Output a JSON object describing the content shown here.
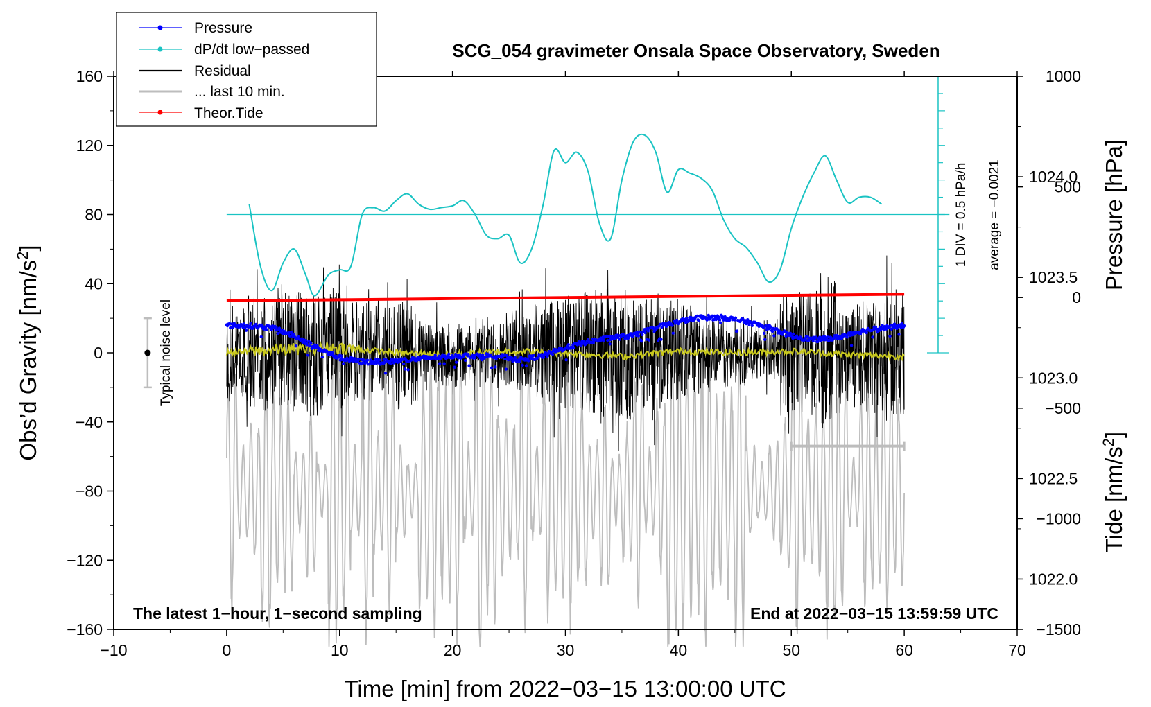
{
  "chart_data": {
    "type": "line",
    "title": "SCG_054 gravimeter Onsala Space Observatory, Sweden",
    "xlabel": "Time [min] from 2022−03−15 13:00:00 UTC",
    "ylabel_left": "Obs’d Gravity [nm/s²]",
    "ylabel_pressure": "Pressure [hPa]",
    "ylabel_tide": "Tide [nm/s²]",
    "xlim": [
      -10,
      70
    ],
    "ylim": [
      -160,
      160
    ],
    "pressure_lim": [
      1021.75,
      1024.5
    ],
    "tide_lim": [
      -1500,
      1000
    ],
    "x_ticks": [
      "−10",
      "0",
      "10",
      "20",
      "30",
      "40",
      "50",
      "60",
      "70"
    ],
    "y_ticks": [
      "160",
      "120",
      "80",
      "40",
      "0",
      "−40",
      "−80",
      "−120",
      "−160"
    ],
    "pressure_ticks": [
      "1024.0",
      "1023.5",
      "1023.0",
      "1022.5",
      "1022.0"
    ],
    "tide_ticks": [
      "1000",
      "500",
      "0",
      "−500",
      "−1000",
      "−1500"
    ],
    "legend": [
      "Pressure",
      "dP/dt low−passed",
      "Residual",
      "... last 10 min.",
      "Theor.Tide"
    ],
    "colors": {
      "pressure": "#0000ff",
      "dpdt": "#1ac3c3",
      "residual": "#000000",
      "last10": "#bdbdbd",
      "tide": "#ff0000",
      "smoothed": "#c8c81e"
    },
    "annotations": {
      "noise_label": "Typical noise level",
      "noise_range": [
        -20,
        20
      ],
      "div_label": "1 DIV = 0.5 hPa/h",
      "avg_label": "average = −0.0021",
      "bottom_left": "The latest 1−hour, 1−second sampling",
      "bottom_right": "End at 2022−03−15 13:59:59 UTC",
      "last10_range": [
        50,
        60
      ]
    },
    "series": [
      {
        "name": "Pressure",
        "unit": "hPa",
        "x": [
          0,
          2,
          4,
          6,
          8,
          10,
          12,
          14,
          16,
          18,
          20,
          22,
          24,
          26,
          28,
          30,
          32,
          34,
          36,
          38,
          40,
          42,
          44,
          46,
          48,
          50,
          52,
          54,
          56,
          58,
          60
        ],
        "values": [
          1023.26,
          1023.26,
          1023.25,
          1023.21,
          1023.15,
          1023.1,
          1023.08,
          1023.08,
          1023.09,
          1023.1,
          1023.11,
          1023.11,
          1023.11,
          1023.09,
          1023.11,
          1023.15,
          1023.18,
          1023.2,
          1023.21,
          1023.25,
          1023.28,
          1023.3,
          1023.3,
          1023.28,
          1023.25,
          1023.21,
          1023.19,
          1023.2,
          1023.23,
          1023.25,
          1023.26
        ]
      },
      {
        "name": "dP/dt low−passed",
        "unit": "nm/s² plot scale",
        "x": [
          2,
          3,
          4,
          5,
          6,
          7,
          7.8,
          9,
          10,
          11,
          12,
          13,
          14,
          15,
          16,
          17,
          18,
          19,
          20,
          21,
          22,
          23,
          24,
          25,
          26,
          27,
          28,
          29,
          30,
          31,
          32,
          33,
          34,
          35,
          36,
          37,
          38,
          39,
          40,
          41,
          42,
          43,
          44,
          45,
          46,
          47,
          48,
          49,
          50,
          51,
          52,
          53,
          54,
          55,
          56,
          57,
          58
        ],
        "values": [
          86,
          50,
          36,
          52,
          60,
          45,
          33,
          45,
          48,
          50,
          80,
          84,
          82,
          88,
          92,
          86,
          83,
          84,
          85,
          88,
          80,
          68,
          66,
          68,
          52,
          60,
          85,
          117,
          110,
          116,
          105,
          75,
          66,
          100,
          122,
          126,
          116,
          93,
          106,
          104,
          101,
          94,
          77,
          66,
          61,
          52,
          41,
          48,
          72,
          90,
          104,
          114,
          100,
          87,
          90,
          90,
          86
        ]
      },
      {
        "name": "Residual",
        "unit": "nm/s²",
        "x": [
          0,
          5,
          10,
          15,
          20,
          25,
          30,
          35,
          40,
          45,
          50,
          55,
          60
        ],
        "values": [
          0,
          2,
          3,
          0,
          -1,
          1,
          0,
          -2,
          1,
          0,
          1,
          -1,
          -2
        ]
      },
      {
        "name": "... last 10 min.",
        "unit": "nm/s²",
        "x": [
          50,
          60
        ],
        "values": [
          -54,
          -54
        ]
      },
      {
        "name": "Theor.Tide",
        "unit": "nm/s²",
        "x": [
          0,
          10,
          20,
          30,
          40,
          50,
          60
        ],
        "values": [
          -15,
          -10,
          -5,
          0,
          5,
          10,
          15
        ]
      }
    ]
  }
}
